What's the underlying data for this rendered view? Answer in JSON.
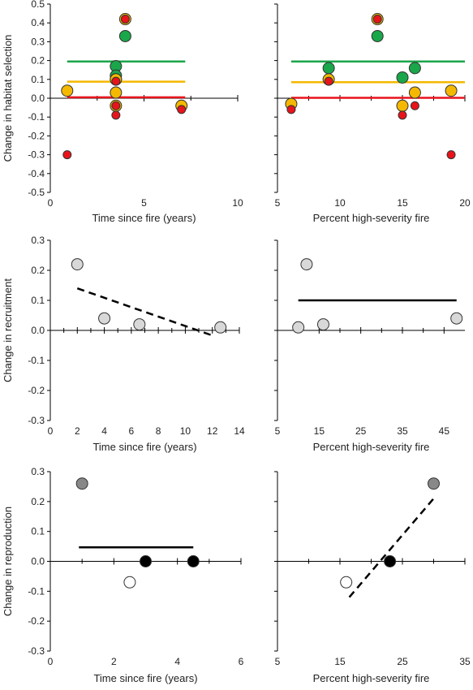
{
  "chart_data": [
    {
      "id": "habitat-time",
      "type": "scatter",
      "xlabel": "Time since fire (years)",
      "ylabel": "Change in habitat selection",
      "xlim": [
        0,
        10
      ],
      "ylim": [
        -0.5,
        0.5
      ],
      "x_ticks": [
        "0",
        "5",
        "10"
      ],
      "y_ticks": [
        "0.5",
        "0.4",
        "0.3",
        "0.2",
        "0.1",
        "0.0",
        "-0.1",
        "-0.2",
        "-0.3",
        "-0.4",
        "-0.5"
      ],
      "axis_crossing_y": 0,
      "grid": false,
      "series": [
        {
          "color": "#1aa64a",
          "points": [
            {
              "x": 3.5,
              "y": 0.17
            },
            {
              "x": 3.5,
              "y": 0.12
            },
            {
              "x": 3.5,
              "y": 0.1
            },
            {
              "x": 4.0,
              "y": 0.33
            }
          ]
        },
        {
          "color": "#f5b800",
          "points": [
            {
              "x": 0.9,
              "y": 0.04
            },
            {
              "x": 3.5,
              "y": 0.1
            },
            {
              "x": 3.5,
              "y": 0.03
            },
            {
              "x": 3.5,
              "y": -0.04
            },
            {
              "x": 4.0,
              "y": 0.42
            },
            {
              "x": 7.0,
              "y": -0.04
            }
          ]
        },
        {
          "color": "#e8141b",
          "points": [
            {
              "x": 0.9,
              "y": -0.3
            },
            {
              "x": 3.5,
              "y": 0.09
            },
            {
              "x": 3.5,
              "y": -0.04
            },
            {
              "x": 3.5,
              "y": -0.09
            },
            {
              "x": 4.0,
              "y": 0.42
            },
            {
              "x": 7.0,
              "y": -0.06
            }
          ]
        }
      ],
      "lines": [
        {
          "color": "#1aa64a",
          "style": "solid",
          "x1": 0.9,
          "y1": 0.195,
          "x2": 7.2,
          "y2": 0.195
        },
        {
          "color": "#f5b800",
          "style": "solid",
          "x1": 0.9,
          "y1": 0.088,
          "x2": 7.2,
          "y2": 0.088
        },
        {
          "color": "#e8141b",
          "style": "solid",
          "x1": 0.9,
          "y1": 0.005,
          "x2": 7.2,
          "y2": 0.005
        }
      ]
    },
    {
      "id": "habitat-severity",
      "type": "scatter",
      "xlabel": "Percent high-severity fire",
      "ylabel": "",
      "xlim": [
        5,
        20
      ],
      "ylim": [
        -0.5,
        0.5
      ],
      "x_ticks": [
        "5",
        "10",
        "15",
        "20"
      ],
      "y_ticks": [],
      "axis_crossing_y": 0,
      "grid": false,
      "series": [
        {
          "color": "#1aa64a",
          "points": [
            {
              "x": 9.1,
              "y": 0.16
            },
            {
              "x": 13.0,
              "y": 0.33
            },
            {
              "x": 15.0,
              "y": 0.11
            },
            {
              "x": 16.0,
              "y": 0.16
            }
          ]
        },
        {
          "color": "#f5b800",
          "points": [
            {
              "x": 6.1,
              "y": -0.03
            },
            {
              "x": 9.1,
              "y": 0.1
            },
            {
              "x": 13.0,
              "y": 0.42
            },
            {
              "x": 15.0,
              "y": -0.04
            },
            {
              "x": 16.0,
              "y": 0.03
            },
            {
              "x": 18.9,
              "y": 0.04
            }
          ]
        },
        {
          "color": "#e8141b",
          "points": [
            {
              "x": 6.1,
              "y": -0.06
            },
            {
              "x": 9.1,
              "y": 0.09
            },
            {
              "x": 13.0,
              "y": 0.42
            },
            {
              "x": 15.0,
              "y": -0.09
            },
            {
              "x": 16.0,
              "y": -0.04
            },
            {
              "x": 18.9,
              "y": -0.3
            }
          ]
        }
      ],
      "lines": [
        {
          "color": "#1aa64a",
          "style": "solid",
          "x1": 6.1,
          "y1": 0.195,
          "x2": 20,
          "y2": 0.195
        },
        {
          "color": "#f5b800",
          "style": "solid",
          "x1": 6.1,
          "y1": 0.085,
          "x2": 20,
          "y2": 0.085
        },
        {
          "color": "#e8141b",
          "style": "solid",
          "x1": 6.1,
          "y1": 0.002,
          "x2": 20,
          "y2": 0.002
        }
      ]
    },
    {
      "id": "recruitment-time",
      "type": "scatter",
      "xlabel": "Time since fire (years)",
      "ylabel": "Change in recruitment",
      "xlim": [
        0,
        14
      ],
      "ylim": [
        -0.3,
        0.3
      ],
      "x_ticks": [
        "0",
        "2",
        "4",
        "6",
        "8",
        "10",
        "12",
        "14"
      ],
      "y_ticks": [
        "0.3",
        "0.2",
        "0.1",
        "0.0",
        "-0.1",
        "-0.2",
        "-0.3"
      ],
      "axis_crossing_y": 0,
      "grid": false,
      "series": [
        {
          "color": "#d8d8d8",
          "points": [
            {
              "x": 2.0,
              "y": 0.22
            },
            {
              "x": 4.0,
              "y": 0.04
            },
            {
              "x": 6.6,
              "y": 0.02
            },
            {
              "x": 12.6,
              "y": 0.01
            }
          ]
        }
      ],
      "lines": [
        {
          "color": "#000000",
          "style": "dashed",
          "x1": 2.0,
          "y1": 0.14,
          "x2": 12.2,
          "y2": -0.02
        }
      ]
    },
    {
      "id": "recruitment-severity",
      "type": "scatter",
      "xlabel": "Percent high-severity fire",
      "ylabel": "",
      "xlim": [
        5,
        50
      ],
      "ylim": [
        -0.3,
        0.3
      ],
      "x_ticks": [
        "5",
        "15",
        "25",
        "35",
        "45"
      ],
      "y_ticks": [],
      "axis_crossing_y": 0,
      "grid": false,
      "series": [
        {
          "color": "#d8d8d8",
          "points": [
            {
              "x": 10.0,
              "y": 0.01
            },
            {
              "x": 12.0,
              "y": 0.22
            },
            {
              "x": 16.0,
              "y": 0.02
            },
            {
              "x": 48.0,
              "y": 0.04
            }
          ]
        }
      ],
      "lines": [
        {
          "color": "#000000",
          "style": "solid",
          "x1": 10.0,
          "y1": 0.1,
          "x2": 48.0,
          "y2": 0.1
        }
      ]
    },
    {
      "id": "reproduction-time",
      "type": "scatter",
      "xlabel": "Time since fire (years)",
      "ylabel": "Change in reproduction",
      "xlim": [
        0,
        6
      ],
      "ylim": [
        -0.3,
        0.3
      ],
      "x_ticks": [
        "0",
        "2",
        "4",
        "6"
      ],
      "y_ticks": [
        "0.3",
        "0.2",
        "0.1",
        "0.0",
        "-0.1",
        "-0.2",
        "-0.3"
      ],
      "axis_crossing_y": 0,
      "grid": false,
      "series": [
        {
          "color": "#888888",
          "points": [
            {
              "x": 1.0,
              "y": 0.26
            }
          ]
        },
        {
          "color": "#ffffff",
          "points": [
            {
              "x": 2.5,
              "y": -0.07
            }
          ]
        },
        {
          "color": "#000000",
          "points": [
            {
              "x": 3.0,
              "y": 0.0
            },
            {
              "x": 4.5,
              "y": 0.0
            }
          ]
        }
      ],
      "lines": [
        {
          "color": "#000000",
          "style": "solid",
          "x1": 0.9,
          "y1": 0.047,
          "x2": 4.5,
          "y2": 0.047
        }
      ]
    },
    {
      "id": "reproduction-severity",
      "type": "scatter",
      "xlabel": "Percent high-severity fire",
      "ylabel": "",
      "xlim": [
        5,
        35
      ],
      "ylim": [
        -0.3,
        0.3
      ],
      "x_ticks": [
        "5",
        "15",
        "25",
        "35"
      ],
      "y_ticks": [],
      "axis_crossing_y": 0,
      "grid": false,
      "series": [
        {
          "color": "#888888",
          "points": [
            {
              "x": 30.0,
              "y": 0.26
            }
          ]
        },
        {
          "color": "#ffffff",
          "points": [
            {
              "x": 16.0,
              "y": -0.07
            }
          ]
        },
        {
          "color": "#000000",
          "points": [
            {
              "x": 23.0,
              "y": 0.0
            }
          ]
        }
      ],
      "lines": [
        {
          "color": "#000000",
          "style": "dashed",
          "x1": 16.5,
          "y1": -0.12,
          "x2": 30.0,
          "y2": 0.21
        }
      ]
    }
  ]
}
